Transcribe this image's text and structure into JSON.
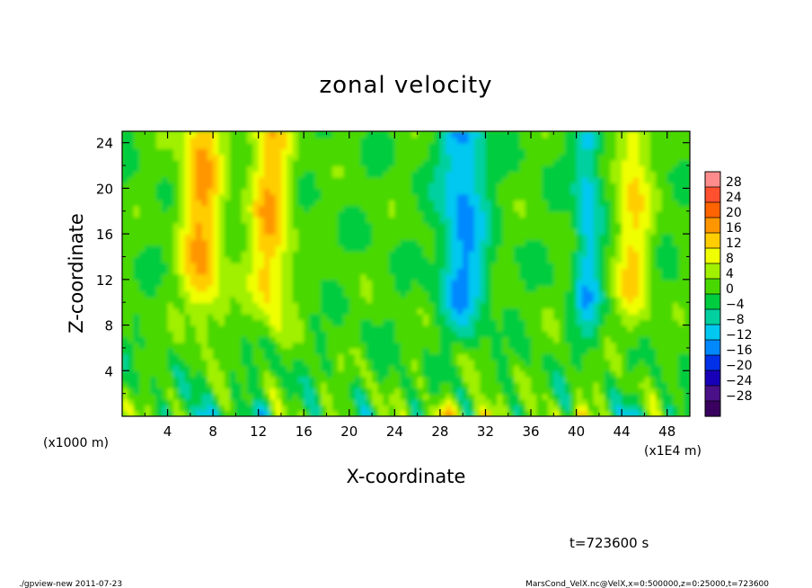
{
  "chart_data": {
    "type": "heatmap",
    "title": "zonal velocity",
    "xlabel": "X-coordinate",
    "ylabel": "Z-coordinate",
    "x_unit_left": "(x1000 m)",
    "x_unit_right": "(x1E4 m)",
    "xlim": [
      0,
      50
    ],
    "ylim": [
      0,
      25
    ],
    "x_ticks": [
      4,
      8,
      12,
      16,
      20,
      24,
      28,
      32,
      36,
      40,
      44,
      48
    ],
    "y_ticks": [
      4,
      8,
      12,
      16,
      20,
      24
    ],
    "colorbar": {
      "levels": [
        28,
        24,
        20,
        16,
        12,
        8,
        4,
        0,
        -4,
        -8,
        -12,
        -16,
        -20,
        -24,
        -28
      ],
      "colors": [
        "#ff8c8c",
        "#ff5030",
        "#ff6400",
        "#ff9600",
        "#ffcd00",
        "#f0ff00",
        "#a0f000",
        "#48d800",
        "#00cc40",
        "#00d0a0",
        "#00c8f0",
        "#0088ff",
        "#0030e8",
        "#1800b8",
        "#4a1088",
        "#3a0060"
      ]
    },
    "bands": [
      {
        "x": 7,
        "half_width": 1.8,
        "value": 15,
        "z_from": 12
      },
      {
        "x": 13,
        "half_width": 1.8,
        "value": 14,
        "z_from": 12
      },
      {
        "x": 30,
        "half_width": 2.0,
        "value": -14,
        "z_from": 11
      },
      {
        "x": 41,
        "half_width": 1.2,
        "value": -11,
        "z_from": 10
      },
      {
        "x": 45,
        "half_width": 1.5,
        "value": 11,
        "z_from": 11
      }
    ],
    "background_value": 1,
    "surface_hotspots": [
      {
        "x": 28.5,
        "value": 18
      },
      {
        "x": 32,
        "value": 20
      },
      {
        "x": 40.5,
        "value": 14
      },
      {
        "x": 7,
        "value": -16
      },
      {
        "x": 12,
        "value": -14
      },
      {
        "x": 45,
        "value": -13
      }
    ]
  },
  "time_label": "t=723600 s",
  "footer_left": "./gpview-new  2011-07-23",
  "footer_right": "MarsCond_VelX.nc@VelX,x=0:500000,z=0:25000,t=723600"
}
